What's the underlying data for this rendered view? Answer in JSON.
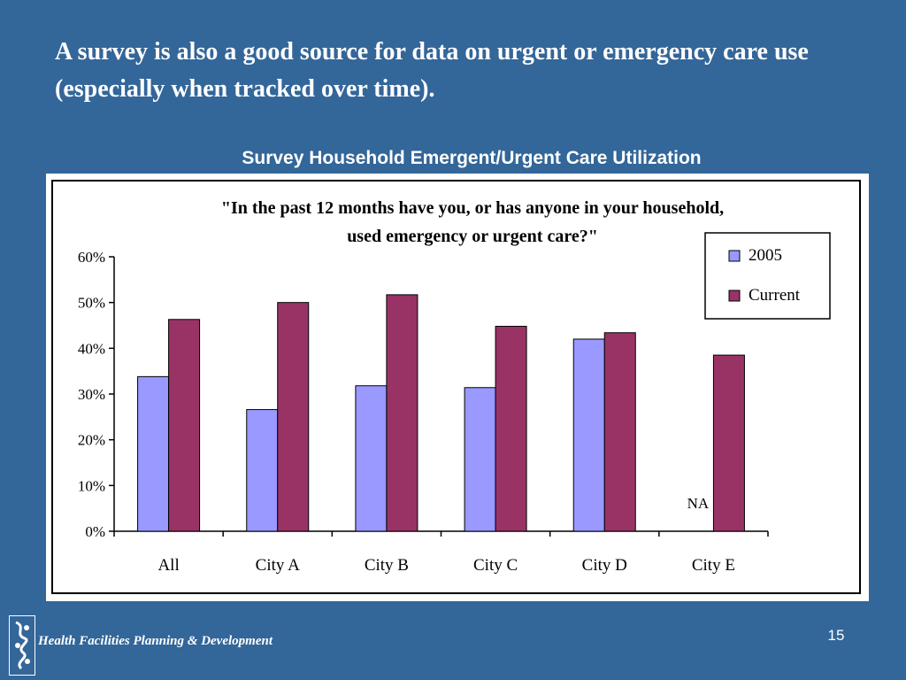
{
  "slide": {
    "heading": "A survey is also a good source for data on urgent or emergency care use (especially when tracked over time).",
    "chart_caption": "Survey Household Emergent/Urgent Care Utilization",
    "footer_text": "Health Facilities Planning & Development",
    "page_number": "15"
  },
  "chart_data": {
    "type": "bar",
    "title_lines": [
      "\"In the past 12 months have you, or has anyone in your household,",
      "used emergency or urgent care?\""
    ],
    "categories": [
      "All",
      "City A",
      "City B",
      "City C",
      "City D",
      "City E"
    ],
    "series": [
      {
        "name": "2005",
        "values": [
          33.8,
          26.6,
          31.8,
          31.4,
          42.0,
          null
        ],
        "color": "#9999ff"
      },
      {
        "name": "Current",
        "values": [
          46.3,
          50.0,
          51.7,
          44.8,
          43.4,
          38.5
        ],
        "color": "#993366"
      }
    ],
    "ylim": [
      0,
      60
    ],
    "yticks": [
      0,
      10,
      20,
      30,
      40,
      50,
      60
    ],
    "ytick_format": "percent",
    "missing_label": "NA",
    "grid": false,
    "legend_position": "top-right"
  }
}
